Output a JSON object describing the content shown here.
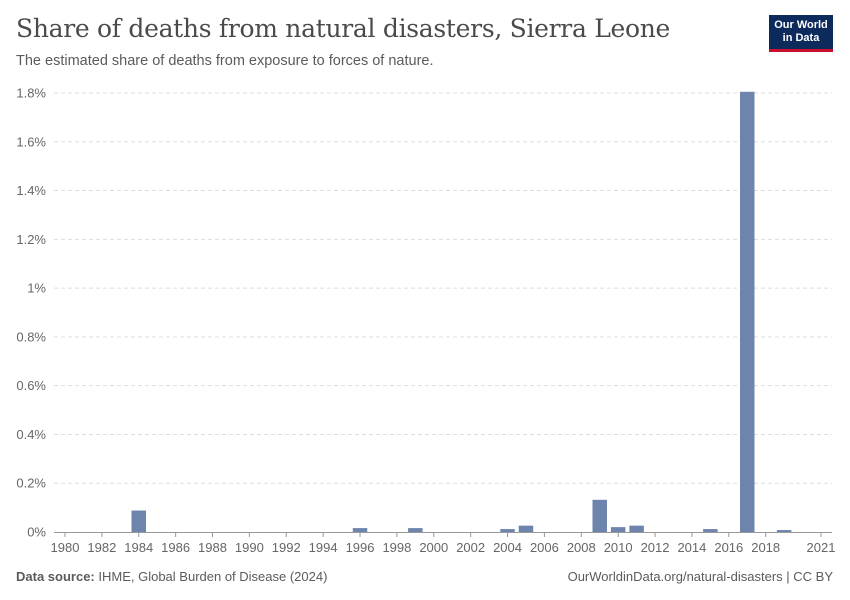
{
  "header": {
    "title": "Share of deaths from natural disasters, Sierra Leone",
    "subtitle": "The estimated share of deaths from exposure to forces of nature."
  },
  "logo": {
    "line1": "Our World",
    "line2": "in Data"
  },
  "footer": {
    "source_label": "Data source:",
    "source_text": "IHME, Global Burden of Disease (2024)",
    "right_text": "OurWorldinData.org/natural-disasters | CC BY"
  },
  "colors": {
    "bar": "#6d84ad",
    "grid": "#dddddd",
    "axis": "#999999"
  },
  "chart_data": {
    "type": "bar",
    "title": "Share of deaths from natural disasters, Sierra Leone",
    "xlabel": "",
    "ylabel": "",
    "x_range": [
      1980,
      2021
    ],
    "ylim": [
      0,
      1.8
    ],
    "y_ticks": [
      0,
      0.2,
      0.4,
      0.6,
      0.8,
      1,
      1.2,
      1.4,
      1.6,
      1.8
    ],
    "y_tick_labels": [
      "0%",
      "0.2%",
      "0.4%",
      "0.6%",
      "0.8%",
      "1%",
      "1.2%",
      "1.4%",
      "1.6%",
      "1.8%"
    ],
    "x_tick_labels": [
      "1980",
      "1982",
      "1984",
      "1986",
      "1988",
      "1990",
      "1992",
      "1994",
      "1996",
      "1998",
      "2000",
      "2002",
      "2004",
      "2006",
      "2008",
      "2010",
      "2012",
      "2014",
      "2016",
      "2018",
      "2021"
    ],
    "grid": true,
    "unit": "%",
    "points": [
      {
        "year": 1984,
        "value": 0.088
      },
      {
        "year": 1996,
        "value": 0.016
      },
      {
        "year": 1999,
        "value": 0.016
      },
      {
        "year": 2004,
        "value": 0.012
      },
      {
        "year": 2005,
        "value": 0.026
      },
      {
        "year": 2009,
        "value": 0.132
      },
      {
        "year": 2010,
        "value": 0.02
      },
      {
        "year": 2011,
        "value": 0.026
      },
      {
        "year": 2015,
        "value": 0.012
      },
      {
        "year": 2017,
        "value": 1.805
      },
      {
        "year": 2019,
        "value": 0.008
      }
    ]
  }
}
